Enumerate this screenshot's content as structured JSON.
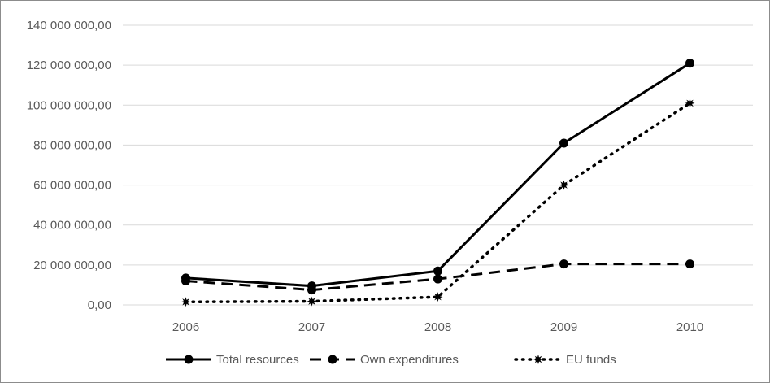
{
  "chart_data": {
    "type": "line",
    "title": "",
    "xlabel": "",
    "ylabel": "",
    "categories": [
      "2006",
      "2007",
      "2008",
      "2009",
      "2010"
    ],
    "ylim": [
      0,
      140000000
    ],
    "yticks": [
      0,
      20000000,
      40000000,
      60000000,
      80000000,
      100000000,
      120000000,
      140000000
    ],
    "ytick_labels": [
      "0,00",
      "20 000 000,00",
      "40 000 000,00",
      "60 000 000,00",
      "80 000 000,00",
      "100 000 000,00",
      "120 000 000,00",
      "140 000 000,00"
    ],
    "grid": "horizontal",
    "legend_position": "bottom",
    "series": [
      {
        "name": "Total resources",
        "style": "solid",
        "marker": "circle",
        "color": "#000000",
        "values": [
          13500000,
          9500000,
          17000000,
          81000000,
          121000000
        ]
      },
      {
        "name": "Own expenditures",
        "style": "dashed",
        "marker": "circle",
        "color": "#000000",
        "values": [
          12000000,
          7500000,
          13000000,
          20500000,
          20500000
        ]
      },
      {
        "name": "EU funds",
        "style": "dotted",
        "marker": "star",
        "color": "#000000",
        "values": [
          1500000,
          1800000,
          4000000,
          60000000,
          101000000
        ]
      }
    ]
  }
}
